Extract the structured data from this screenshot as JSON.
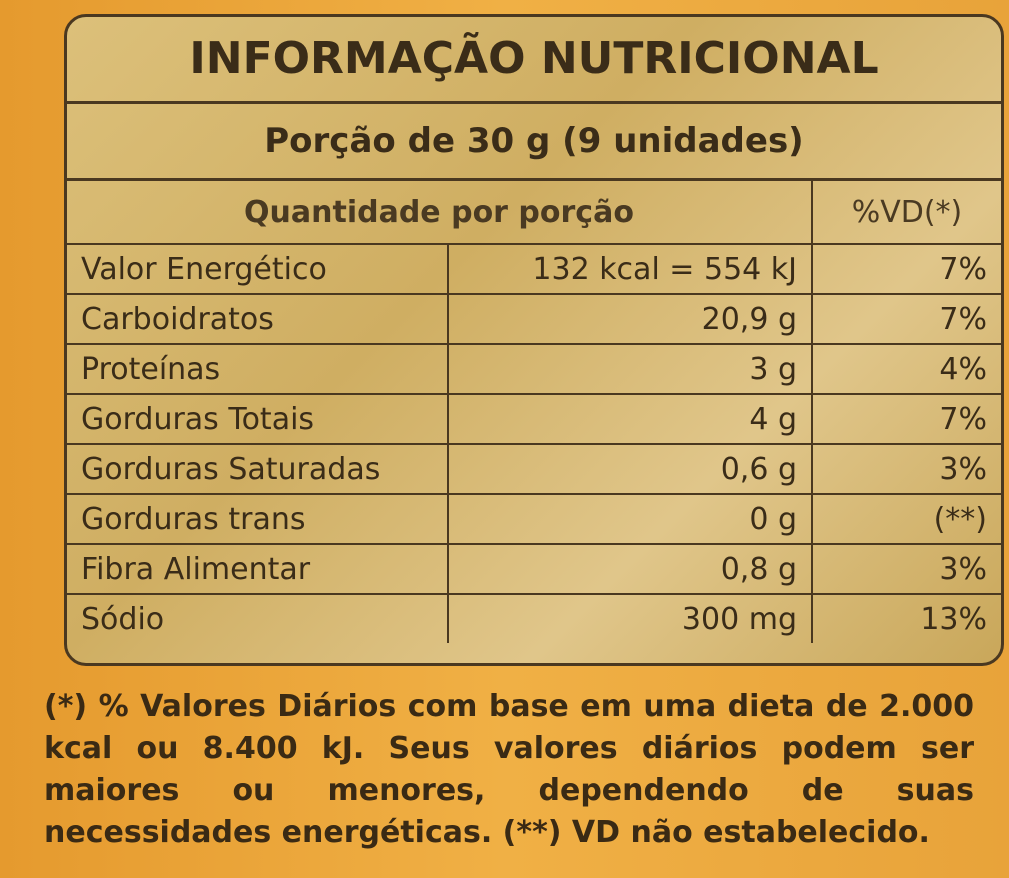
{
  "title": "INFORMAÇÃO NUTRICIONAL",
  "serving": "Porção de 30 g (9 unidades)",
  "table": {
    "header": [
      "Quantidade por porção",
      "%VD(*)"
    ],
    "rows": [
      [
        "Valor Energético",
        "132 kcal = 554 kJ",
        "7%"
      ],
      [
        "Carboidratos",
        "20,9 g",
        "7%"
      ],
      [
        "Proteínas",
        "3 g",
        "4%"
      ],
      [
        "Gorduras Totais",
        "4 g",
        "7%"
      ],
      [
        "Gorduras Saturadas",
        "0,6 g",
        "3%"
      ],
      [
        "Gorduras trans",
        "0 g",
        "(**)"
      ],
      [
        "Fibra Alimentar",
        "0,8 g",
        "3%"
      ],
      [
        "Sódio",
        "300 mg",
        "13%"
      ]
    ]
  },
  "footnote": "(*) % Valores Diários com base em uma dieta de 2.000 kcal ou 8.400 kJ. Seus valores diários podem ser maiores ou menores, dependendo de suas necessidades energéticas. (**) VD não estabelecido."
}
